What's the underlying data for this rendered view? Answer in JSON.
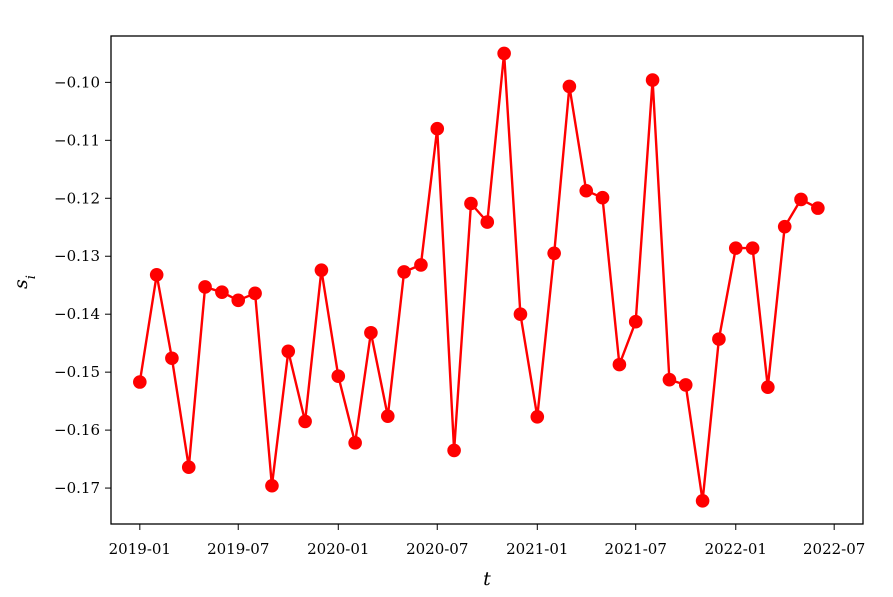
{
  "chart_data": {
    "type": "line",
    "xlabel": "t",
    "ylabel": "s",
    "ylabel_subscript": "i",
    "x_tick_labels": [
      "2019-01",
      "2019-07",
      "2020-01",
      "2020-07",
      "2021-01",
      "2021-07",
      "2022-01",
      "2022-07"
    ],
    "y_tick_labels": [
      "−0.10",
      "−0.11",
      "−0.12",
      "−0.13",
      "−0.14",
      "−0.15",
      "−0.16",
      "−0.17"
    ],
    "y_ticks": [
      -0.1,
      -0.11,
      -0.12,
      -0.13,
      -0.14,
      -0.15,
      -0.16,
      -0.17
    ],
    "xlim": [
      "2018-11-09",
      "2022-08-23"
    ],
    "ylim": [
      -0.1762,
      -0.092
    ],
    "grid": false,
    "series": [
      {
        "color": "#ff0000",
        "marker": "circle",
        "x": [
          "2019-01",
          "2019-02",
          "2019-03",
          "2019-04",
          "2019-05",
          "2019-06",
          "2019-07",
          "2019-08",
          "2019-09",
          "2019-10",
          "2019-11",
          "2019-12",
          "2020-01",
          "2020-02",
          "2020-03",
          "2020-04",
          "2020-05",
          "2020-06",
          "2020-07",
          "2020-08",
          "2020-09",
          "2020-10",
          "2020-11",
          "2020-12",
          "2021-01",
          "2021-02",
          "2021-03",
          "2021-04",
          "2021-05",
          "2021-06",
          "2021-07",
          "2021-08",
          "2021-09",
          "2021-10",
          "2021-11",
          "2021-12",
          "2022-01",
          "2022-02",
          "2022-03",
          "2022-04",
          "2022-05",
          "2022-06"
        ],
        "values": [
          -0.1517,
          -0.1332,
          -0.1476,
          -0.1664,
          -0.1353,
          -0.1362,
          -0.1376,
          -0.1364,
          -0.1696,
          -0.1464,
          -0.1585,
          -0.1324,
          -0.1507,
          -0.1622,
          -0.1432,
          -0.1576,
          -0.1327,
          -0.1315,
          -0.108,
          -0.1635,
          -0.1209,
          -0.1241,
          -0.095,
          -0.14,
          -0.1577,
          -0.1295,
          -0.1007,
          -0.1187,
          -0.1199,
          -0.1487,
          -0.1413,
          -0.0996,
          -0.1513,
          -0.1522,
          -0.1722,
          -0.1443,
          -0.1286,
          -0.1286,
          -0.1526,
          -0.1249,
          -0.1202,
          -0.1217
        ]
      }
    ]
  }
}
